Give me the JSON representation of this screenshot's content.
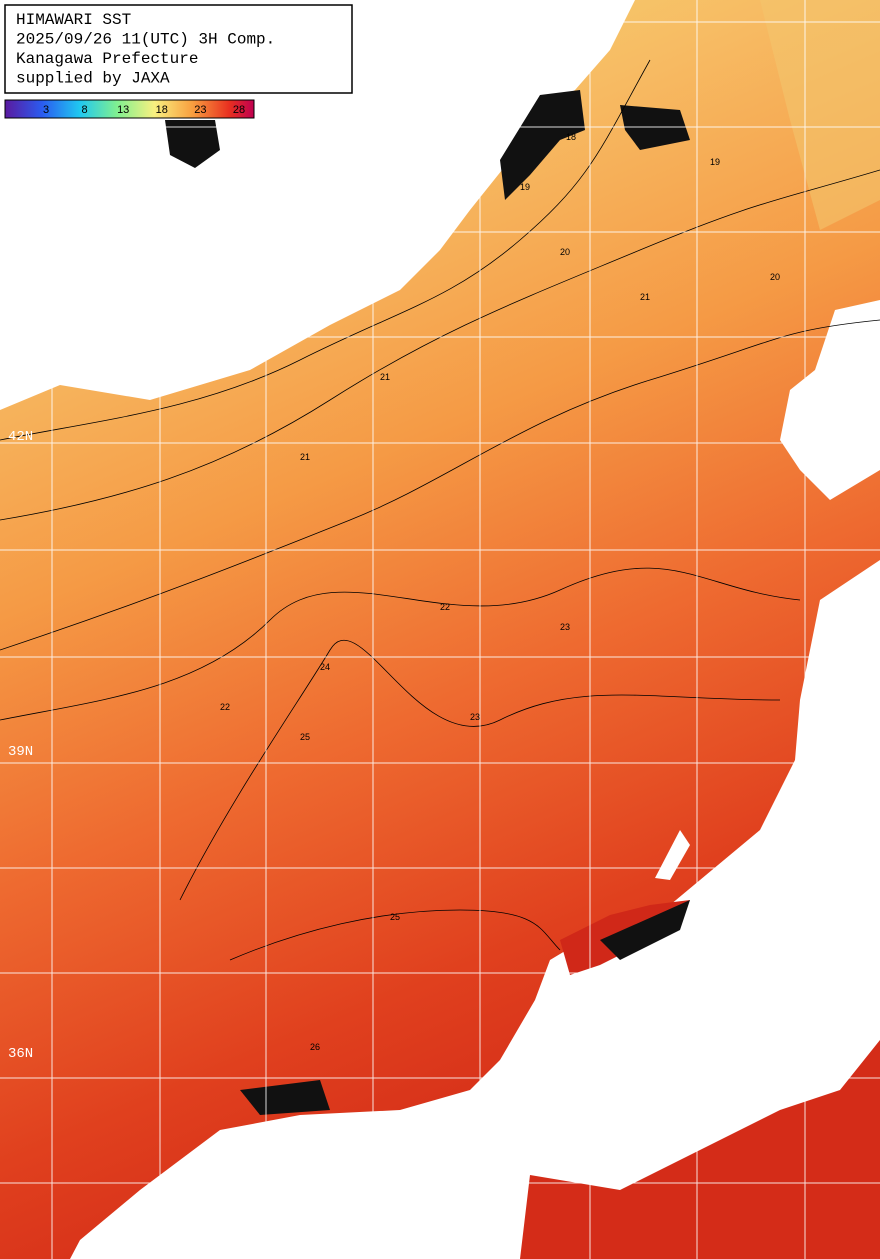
{
  "title_box": {
    "lines": [
      "HIMAWARI SST",
      "2025/09/26 11(UTC) 3H Comp.",
      "Kanagawa Prefecture",
      "supplied by JAXA"
    ]
  },
  "legend": {
    "ticks": [
      3,
      8,
      13,
      18,
      23,
      28
    ]
  },
  "latitude_labels": [
    "42N",
    "39N",
    "36N"
  ],
  "contour_labels": [
    "18",
    "19",
    "19",
    "20",
    "20",
    "21",
    "21",
    "21",
    "22",
    "22",
    "23",
    "23",
    "24",
    "25",
    "25",
    "26"
  ]
}
